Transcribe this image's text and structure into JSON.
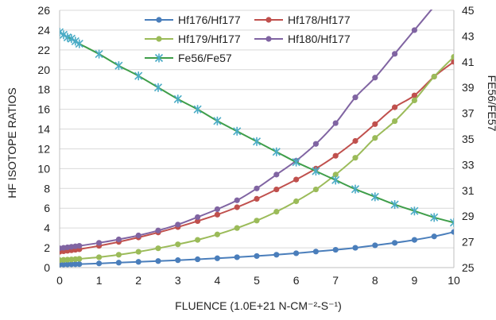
{
  "chart_data": {
    "type": "scatter",
    "title": "",
    "xlabel": "FLUENCE (1.0E+21 N-CM⁻²-S⁻¹)",
    "ylabel": "HF ISOTOPE RATIOS",
    "y2label": "FE56/FE57",
    "xlim": [
      0,
      10
    ],
    "ylim": [
      0,
      26
    ],
    "y2lim": [
      25,
      45
    ],
    "x_ticks": [
      0,
      1,
      2,
      3,
      4,
      5,
      6,
      7,
      8,
      9,
      10
    ],
    "y_ticks": [
      0,
      2,
      4,
      6,
      8,
      10,
      12,
      14,
      16,
      18,
      20,
      22,
      24,
      26
    ],
    "y2_ticks": [
      25,
      27,
      29,
      31,
      33,
      35,
      37,
      39,
      41,
      43,
      45
    ],
    "grid": true,
    "legend_position": "top",
    "series": [
      {
        "name": "Hf176/Hf177",
        "axis": "left",
        "marker": "circle",
        "color": "#4a7ebb",
        "x": [
          0,
          0.1,
          0.2,
          0.3,
          0.4,
          0.5,
          1,
          1.5,
          2,
          2.5,
          3,
          3.5,
          4,
          4.5,
          5,
          5.5,
          6,
          6.5,
          7,
          7.5,
          8,
          8.5,
          9,
          9.5,
          10
        ],
        "values": [
          0.3,
          0.31,
          0.32,
          0.33,
          0.34,
          0.35,
          0.42,
          0.5,
          0.58,
          0.66,
          0.75,
          0.84,
          0.94,
          1.05,
          1.17,
          1.3,
          1.45,
          1.62,
          1.8,
          2.0,
          2.25,
          2.5,
          2.8,
          3.15,
          3.6
        ]
      },
      {
        "name": "Hf178/Hf177",
        "axis": "left",
        "marker": "circle",
        "color": "#c0504d",
        "x": [
          0,
          0.1,
          0.2,
          0.3,
          0.4,
          0.5,
          1,
          1.5,
          2,
          2.5,
          3,
          3.5,
          4,
          4.5,
          5,
          5.5,
          6,
          6.5,
          7,
          7.5,
          8,
          8.5,
          9,
          9.5,
          10
        ],
        "values": [
          1.6,
          1.65,
          1.7,
          1.75,
          1.8,
          1.85,
          2.2,
          2.6,
          3.05,
          3.55,
          4.1,
          4.7,
          5.35,
          6.1,
          6.95,
          7.9,
          8.9,
          10.0,
          11.3,
          12.8,
          14.5,
          16.2,
          17.4,
          19.3,
          20.8
        ]
      },
      {
        "name": "Hf179/Hf177",
        "axis": "left",
        "marker": "circle",
        "color": "#9bbb59",
        "x": [
          0,
          0.1,
          0.2,
          0.3,
          0.4,
          0.5,
          1,
          1.5,
          2,
          2.5,
          3,
          3.5,
          4,
          4.5,
          5,
          5.5,
          6,
          6.5,
          7,
          7.5,
          8,
          8.5,
          9,
          9.5,
          10
        ],
        "values": [
          0.75,
          0.78,
          0.8,
          0.82,
          0.85,
          0.88,
          1.05,
          1.3,
          1.6,
          1.95,
          2.35,
          2.8,
          3.35,
          4.0,
          4.75,
          5.65,
          6.7,
          7.9,
          9.4,
          11.1,
          13.1,
          14.8,
          16.9,
          19.3,
          21.3
        ]
      },
      {
        "name": "Hf180/Hf177",
        "axis": "left",
        "marker": "circle",
        "color": "#8064a2",
        "x": [
          0,
          0.1,
          0.2,
          0.3,
          0.4,
          0.5,
          1,
          1.5,
          2,
          2.5,
          3,
          3.5,
          4,
          4.5,
          5,
          5.5,
          6,
          6.5,
          7,
          7.5,
          8,
          8.5,
          9,
          9.5
        ],
        "values": [
          1.95,
          2.0,
          2.05,
          2.1,
          2.15,
          2.2,
          2.5,
          2.85,
          3.25,
          3.75,
          4.35,
          5.1,
          5.9,
          6.8,
          8.0,
          9.4,
          10.8,
          12.5,
          14.6,
          17.2,
          19.2,
          21.6,
          24.0,
          26.4
        ]
      },
      {
        "name": "Fe56/Fe57",
        "axis": "right",
        "marker": "star",
        "color": "#4bacc6",
        "line_color": "#3f9e4a",
        "x": [
          0,
          0.1,
          0.2,
          0.3,
          0.4,
          0.5,
          1,
          1.5,
          2,
          2.5,
          3,
          3.5,
          4,
          4.5,
          5,
          5.5,
          6,
          6.5,
          7,
          7.5,
          8,
          8.5,
          9,
          9.5,
          10
        ],
        "values": [
          43.3,
          43.1,
          42.9,
          42.8,
          42.6,
          42.4,
          41.6,
          40.7,
          39.9,
          39.0,
          38.1,
          37.3,
          36.4,
          35.6,
          34.8,
          34.0,
          33.2,
          32.5,
          31.8,
          31.1,
          30.5,
          29.9,
          29.4,
          28.9,
          28.5
        ]
      }
    ]
  }
}
